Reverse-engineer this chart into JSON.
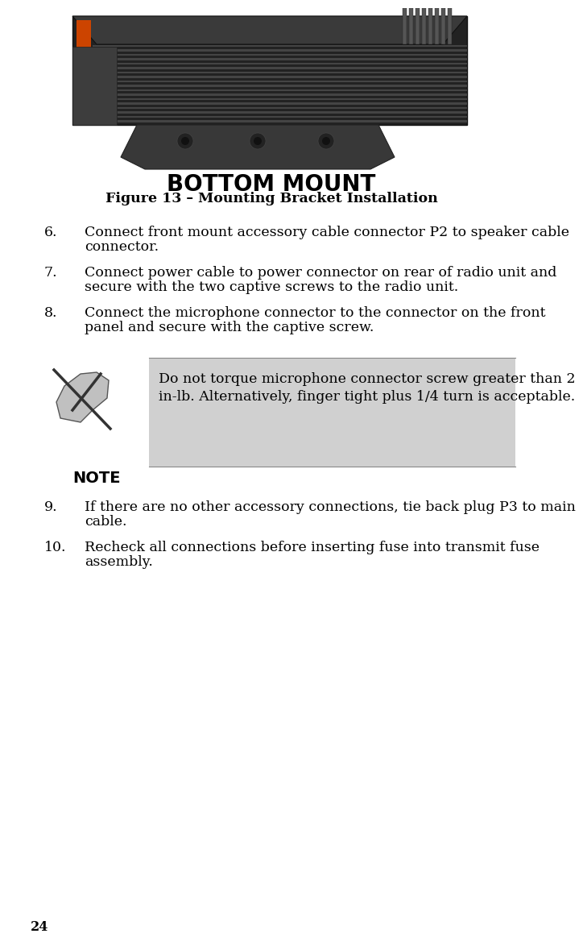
{
  "background_color": "#ffffff",
  "page_number": "24",
  "figure_caption": "Figure 13 – Mounting Bracket Installation",
  "image_label": "BOTTOM MOUNT",
  "note_box_color": "#d0d0d0",
  "note_text_line1": "Do not torque microphone connector screw greater than 2",
  "note_text_line2": "in-lb. Alternatively, finger tight plus 1/4 turn is acceptable.",
  "note_label": "NOTE",
  "items": [
    {
      "num": "6.",
      "text": "Connect front mount accessory cable connector P2 to speaker cable\nconnector."
    },
    {
      "num": "7.",
      "text": "Connect power cable to power connector on rear of radio unit and\nsecure with the two captive screws to the radio unit."
    },
    {
      "num": "8.",
      "text": "Connect the microphone connector to the connector on the front\npanel and secure with the captive screw."
    },
    {
      "num": "9.",
      "text": "If there are no other accessory connections, tie back plug P3 to main\ncable."
    },
    {
      "num": "10.",
      "text": "Recheck all connections before inserting fuse into transmit fuse\nassembly."
    }
  ],
  "font_size_body": 12.5,
  "font_size_caption": 12.5,
  "font_size_note": 12.5,
  "font_size_page": 11.5,
  "font_size_image_label": 20,
  "font_size_note_label": 14
}
